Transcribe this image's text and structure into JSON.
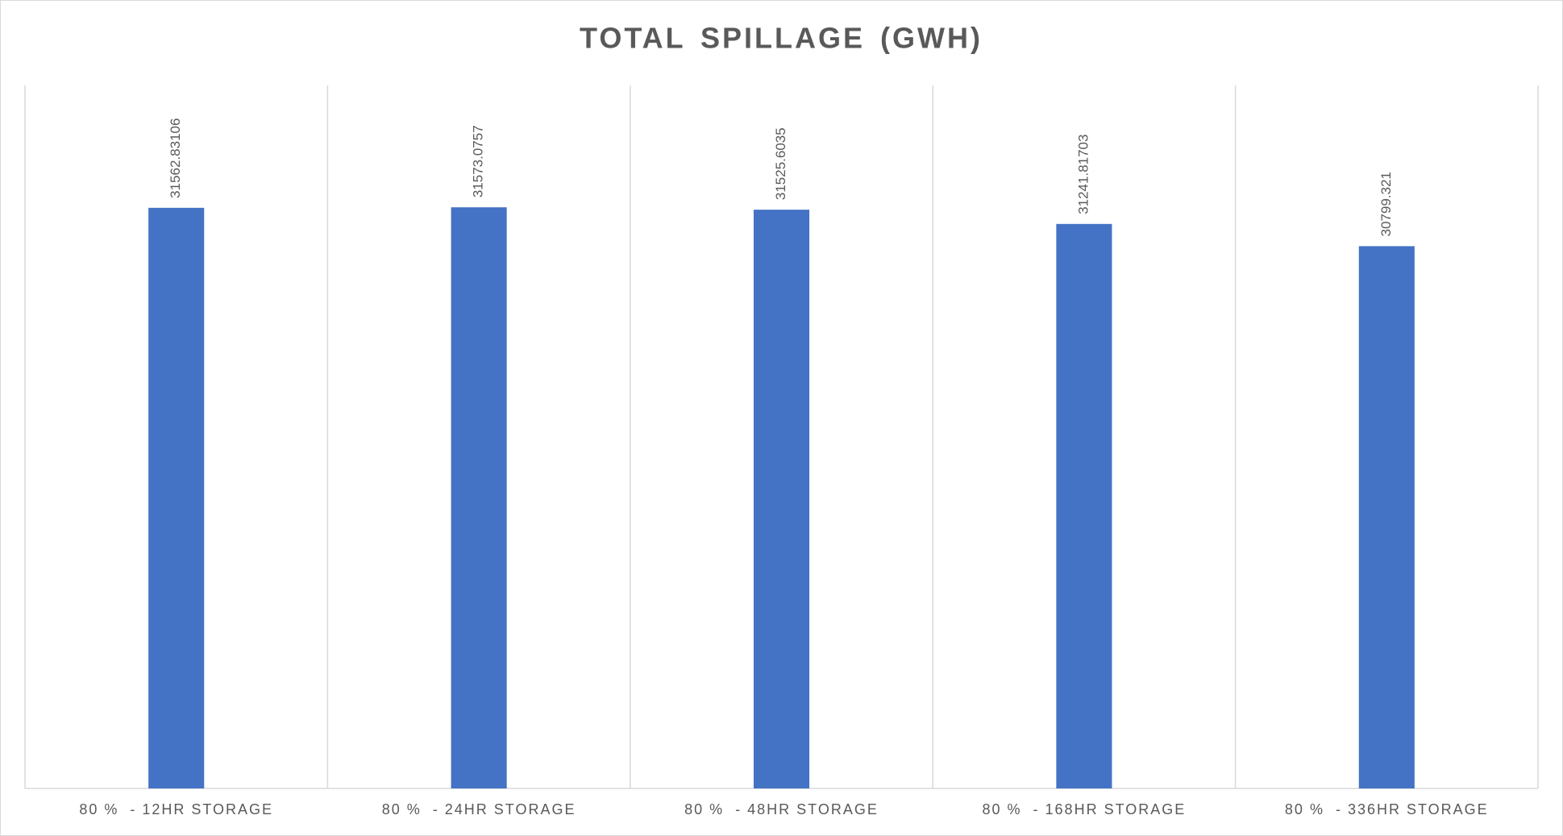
{
  "chart_data": {
    "type": "bar",
    "title": "TOTAL  SPILLAGE (GWH)",
    "categories": [
      "80 %  - 12HR STORAGE",
      "80 %  - 24HR STORAGE",
      "80 %  - 48HR STORAGE",
      "80 %  - 168HR STORAGE",
      "80 %  - 336HR STORAGE"
    ],
    "values": [
      31562.83106,
      31573.0757,
      31525.6035,
      31241.81703,
      30799.321
    ],
    "color": "#4472c4",
    "ylim": [
      20000,
      34000
    ]
  }
}
